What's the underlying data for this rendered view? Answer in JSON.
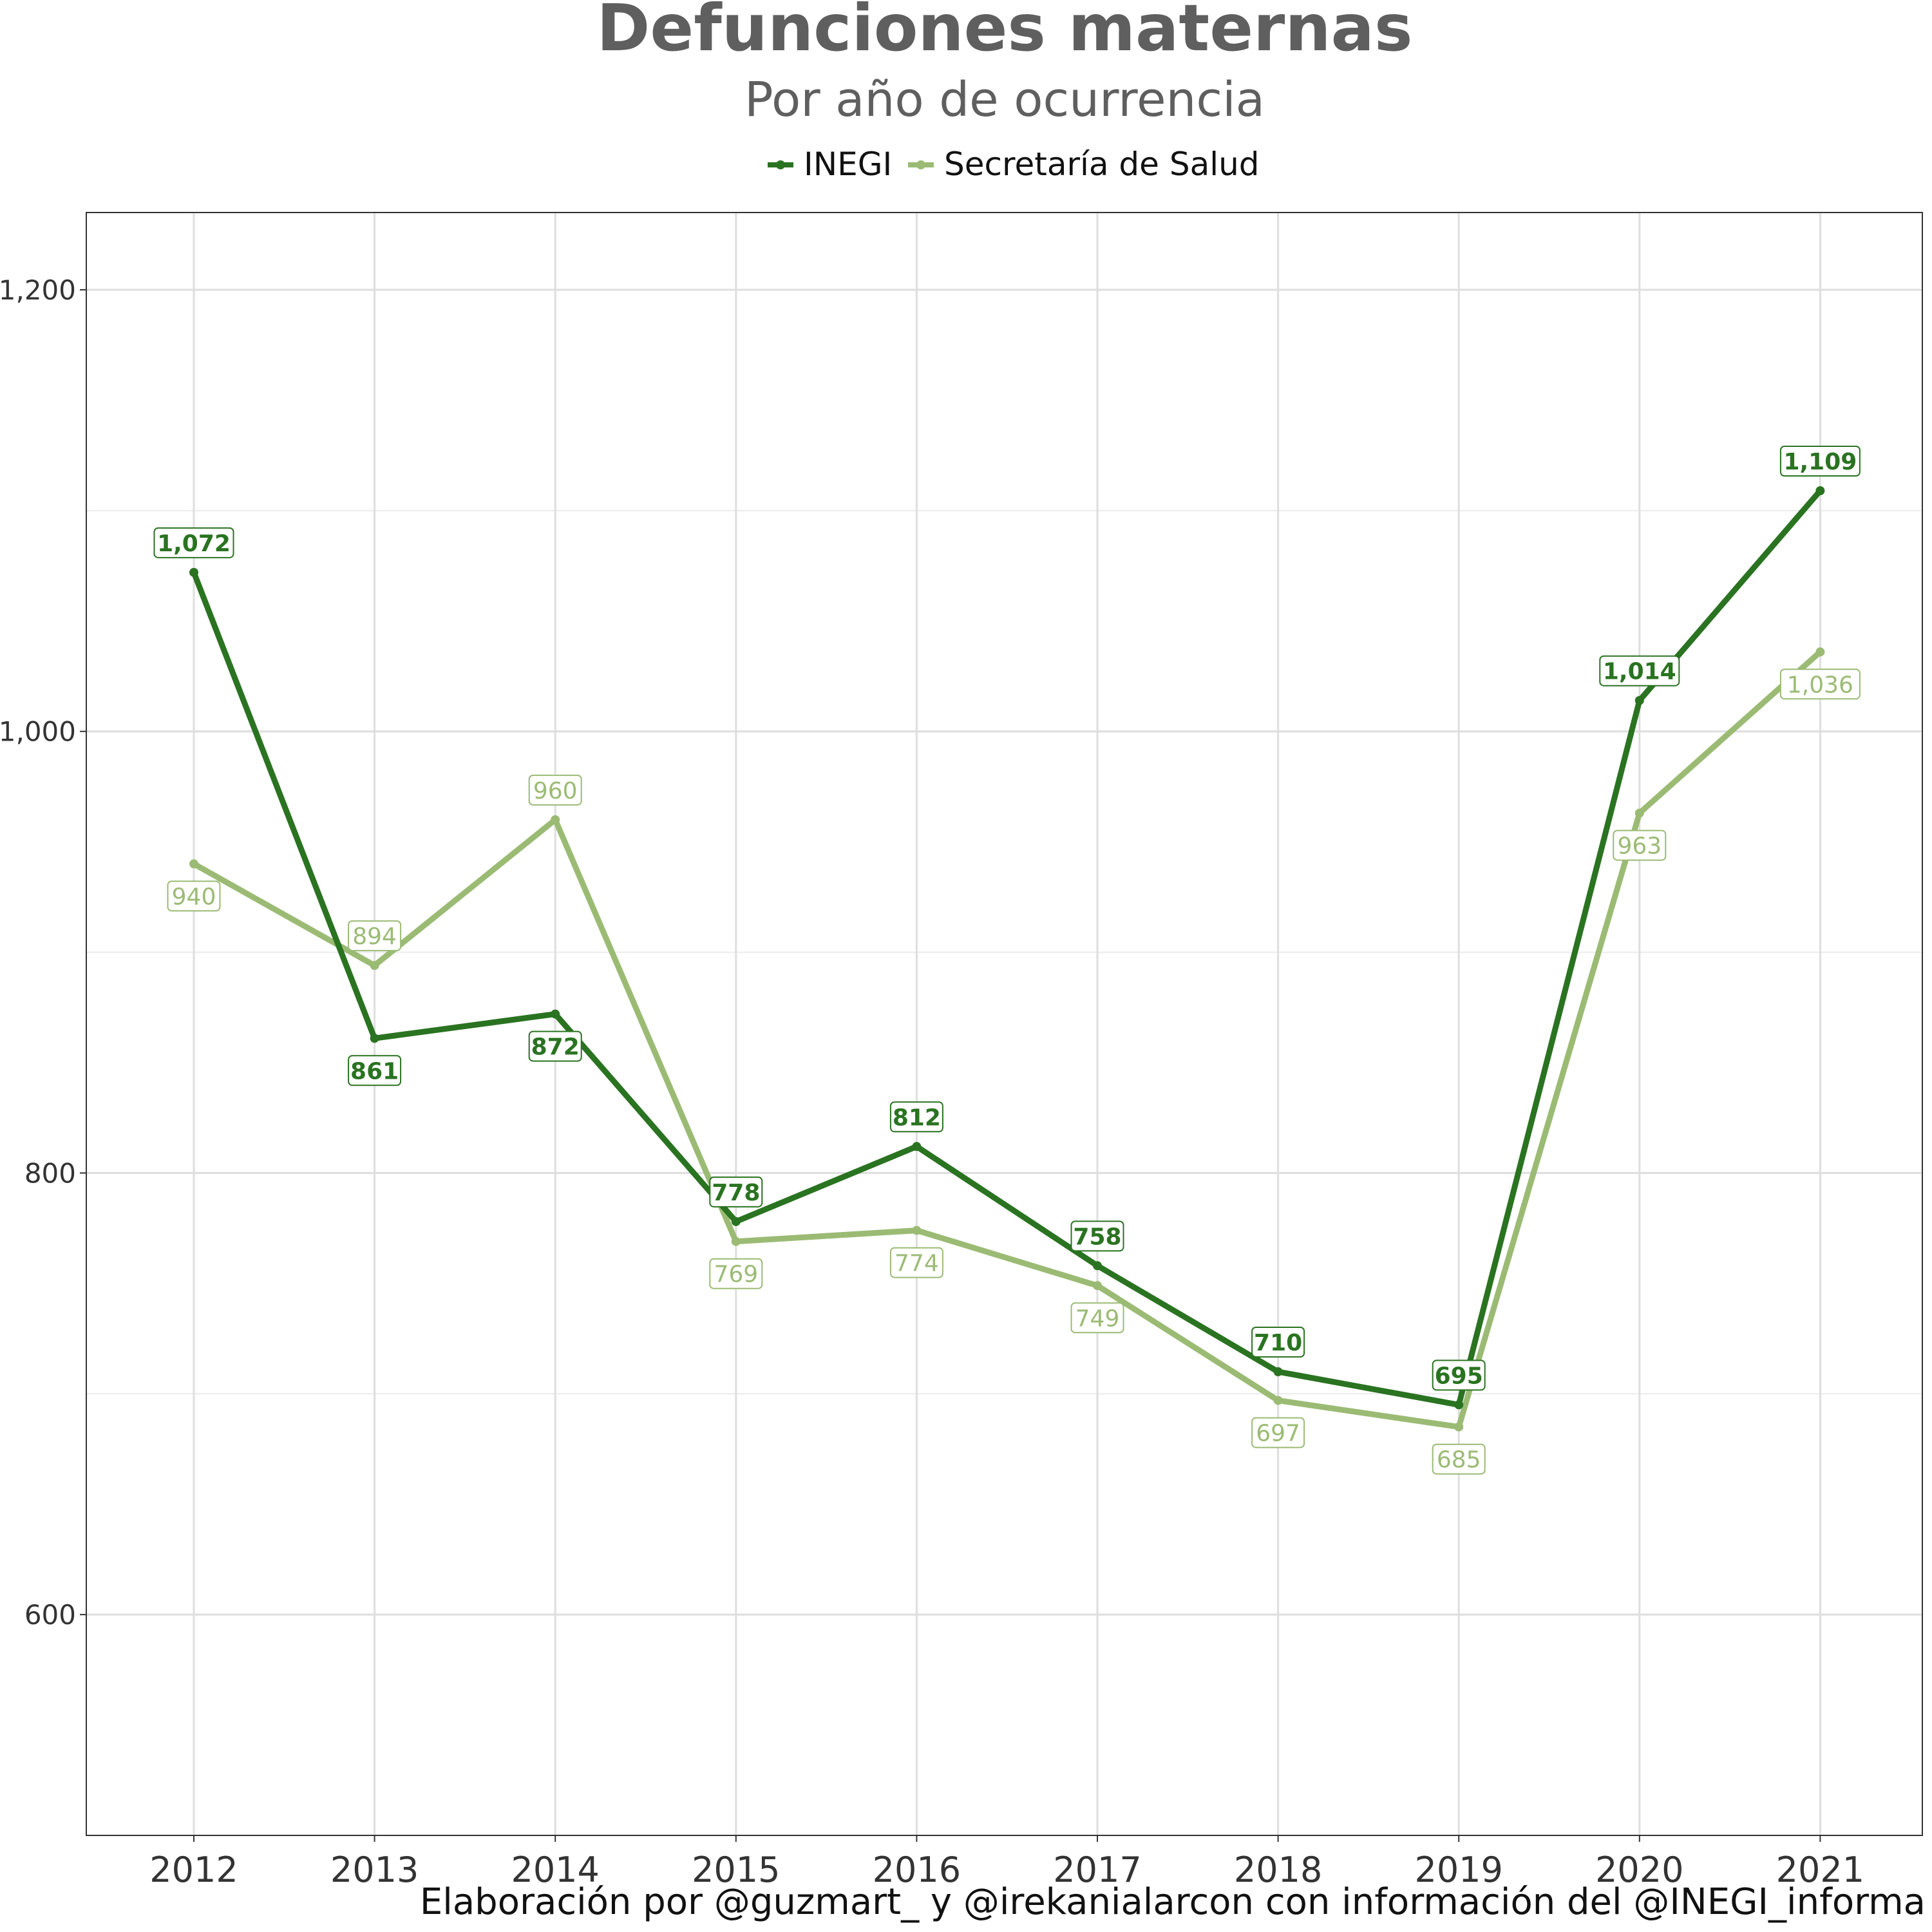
{
  "chart_data": {
    "type": "line",
    "title": "Defunciones maternas",
    "subtitle": "Por año de ocurrencia",
    "caption": "Elaboración por @guzmart_ y @irekanialarcon con información del @INEGI_informa",
    "x": [
      "2012",
      "2013",
      "2014",
      "2015",
      "2016",
      "2017",
      "2018",
      "2019",
      "2020",
      "2021"
    ],
    "series": [
      {
        "name": "INEGI",
        "color": "#2a7321",
        "values": [
          1072,
          861,
          872,
          778,
          812,
          758,
          710,
          695,
          1014,
          1109
        ],
        "labels": [
          "1,072",
          "861",
          "872",
          "778",
          "812",
          "758",
          "710",
          "695",
          "1,014",
          "1,109"
        ]
      },
      {
        "name": "Secretaría de Salud",
        "color": "#9bbb74",
        "values": [
          940,
          894,
          960,
          769,
          774,
          749,
          697,
          685,
          963,
          1036
        ],
        "labels": [
          "940",
          "894",
          "960",
          "769",
          "774",
          "749",
          "697",
          "685",
          "963",
          "1,036"
        ]
      }
    ],
    "yticks": [
      600,
      800,
      1000,
      1200
    ],
    "ytick_labels": [
      "600",
      "800",
      "1,000",
      "1,200"
    ],
    "ylim": [
      500,
      1235
    ],
    "legend_position": "top",
    "grid": true
  }
}
